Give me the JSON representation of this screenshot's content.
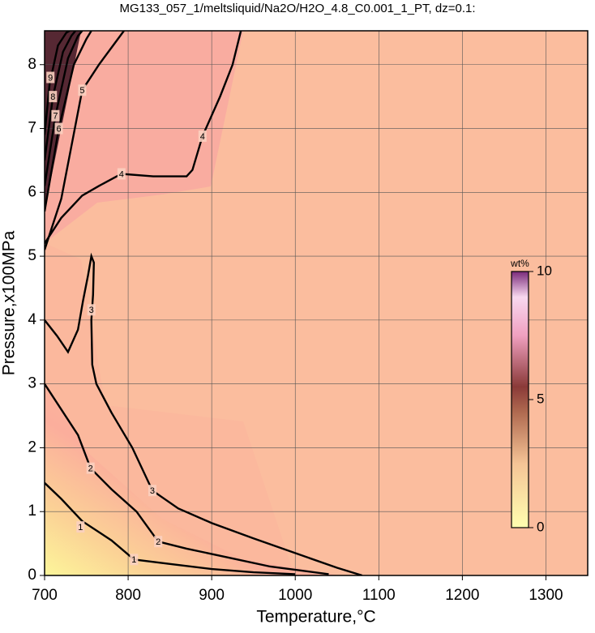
{
  "chart_data": {
    "type": "contour",
    "title": "MG133_057_1/meltsliquid/Na2O/H2O_4.8_C0.001_1_PT, dz=0.1:",
    "xlabel": "Temperature,°C",
    "ylabel": "Pressure,x100MPa",
    "xlim": [
      700,
      1350
    ],
    "ylim": [
      0,
      8.53
    ],
    "xticks": [
      700,
      800,
      900,
      1000,
      1100,
      1200,
      1300
    ],
    "yticks": [
      0,
      1,
      2,
      3,
      4,
      5,
      6,
      7,
      8
    ],
    "grid": true,
    "colorbar": {
      "label": "wt%",
      "lim": [
        0,
        10
      ],
      "ticks": [
        0,
        5,
        10
      ]
    },
    "contours": [
      {
        "level": 1,
        "x": [
          700,
          720,
          745,
          780,
          807,
          850,
          900,
          950,
          1000
        ],
        "y": [
          1.45,
          1.2,
          0.85,
          0.55,
          0.25,
          0.18,
          0.1,
          0.05,
          0.02
        ],
        "label_at": [
          [
            743,
            0.76
          ],
          [
            807,
            0.25
          ]
        ]
      },
      {
        "level": 2,
        "x": [
          700,
          720,
          740,
          755,
          780,
          810,
          836,
          870,
          920,
          970,
          1040
        ],
        "y": [
          3.0,
          2.6,
          2.2,
          1.68,
          1.35,
          1.0,
          0.53,
          0.42,
          0.28,
          0.14,
          0.02
        ],
        "label_at": [
          [
            755,
            1.68
          ],
          [
            836,
            0.53
          ]
        ]
      },
      {
        "level": 3,
        "x": [
          700,
          715,
          728,
          740,
          746,
          752,
          756,
          759,
          758,
          756,
          757,
          762,
          780,
          805,
          829,
          860,
          900,
          950,
          1000,
          1050,
          1080
        ],
        "y": [
          4.0,
          3.75,
          3.5,
          3.85,
          4.3,
          4.7,
          5.0,
          4.9,
          4.4,
          4.0,
          3.3,
          3.0,
          2.55,
          2.0,
          1.33,
          1.05,
          0.82,
          0.58,
          0.35,
          0.12,
          0.0
        ],
        "label_at": [
          [
            756,
            4.16
          ],
          [
            829,
            1.33
          ]
        ]
      },
      {
        "level": 4,
        "x": [
          700,
          720,
          745,
          765,
          792,
          830,
          870,
          877,
          889,
          910,
          925,
          935
        ],
        "y": [
          5.2,
          5.6,
          5.95,
          6.1,
          6.29,
          6.25,
          6.25,
          6.35,
          6.88,
          7.5,
          8.0,
          8.53
        ],
        "label_at": [
          [
            792,
            6.29
          ],
          [
            889,
            6.88
          ]
        ]
      },
      {
        "level": 5,
        "x": [
          700,
          720,
          745,
          765,
          782,
          795
        ],
        "y": [
          5.1,
          5.9,
          7.6,
          8.0,
          8.3,
          8.53
        ],
        "label_at": [
          [
            745,
            7.6
          ]
        ]
      },
      {
        "level": 6,
        "x": [
          700,
          717,
          735,
          750,
          756
        ],
        "y": [
          5.7,
          7.0,
          8.0,
          8.4,
          8.53
        ],
        "label_at": [
          [
            717,
            7.0
          ]
        ]
      },
      {
        "level": 7,
        "x": [
          700,
          713,
          728,
          740,
          745
        ],
        "y": [
          6.1,
          7.2,
          8.1,
          8.45,
          8.53
        ],
        "label_at": [
          [
            713,
            7.2
          ]
        ]
      },
      {
        "level": 8,
        "x": [
          700,
          710,
          722,
          732,
          737
        ],
        "y": [
          6.5,
          7.5,
          8.2,
          8.45,
          8.53
        ],
        "label_at": [
          [
            710,
            7.5
          ]
        ]
      },
      {
        "level": 9,
        "x": [
          700,
          706,
          716,
          726,
          730
        ],
        "y": [
          6.9,
          7.7,
          8.3,
          8.5,
          8.53
        ],
        "label_at": [
          [
            707,
            7.8
          ]
        ]
      }
    ]
  }
}
